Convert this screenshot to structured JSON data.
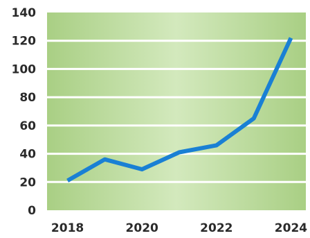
{
  "chart_data": {
    "type": "line",
    "title": "",
    "xlabel": "",
    "ylabel": "",
    "x": [
      2018,
      2019,
      2020,
      2021,
      2022,
      2023,
      2024
    ],
    "series": [
      {
        "values": [
          21,
          36,
          29,
          41,
          46,
          65,
          122
        ],
        "color": "#1a80d4"
      }
    ],
    "ylim": [
      0,
      140
    ],
    "y_ticks": [
      "0",
      "20",
      "40",
      "60",
      "80",
      "100",
      "120",
      "140"
    ],
    "x_ticks": [
      "2018",
      "2020",
      "2022",
      "2024"
    ],
    "grid": true,
    "legend": "none",
    "plot_background": [
      "#a9cf84",
      "#d3e9bd",
      "#a9cf84"
    ],
    "gridline_color": "#ffffff"
  }
}
